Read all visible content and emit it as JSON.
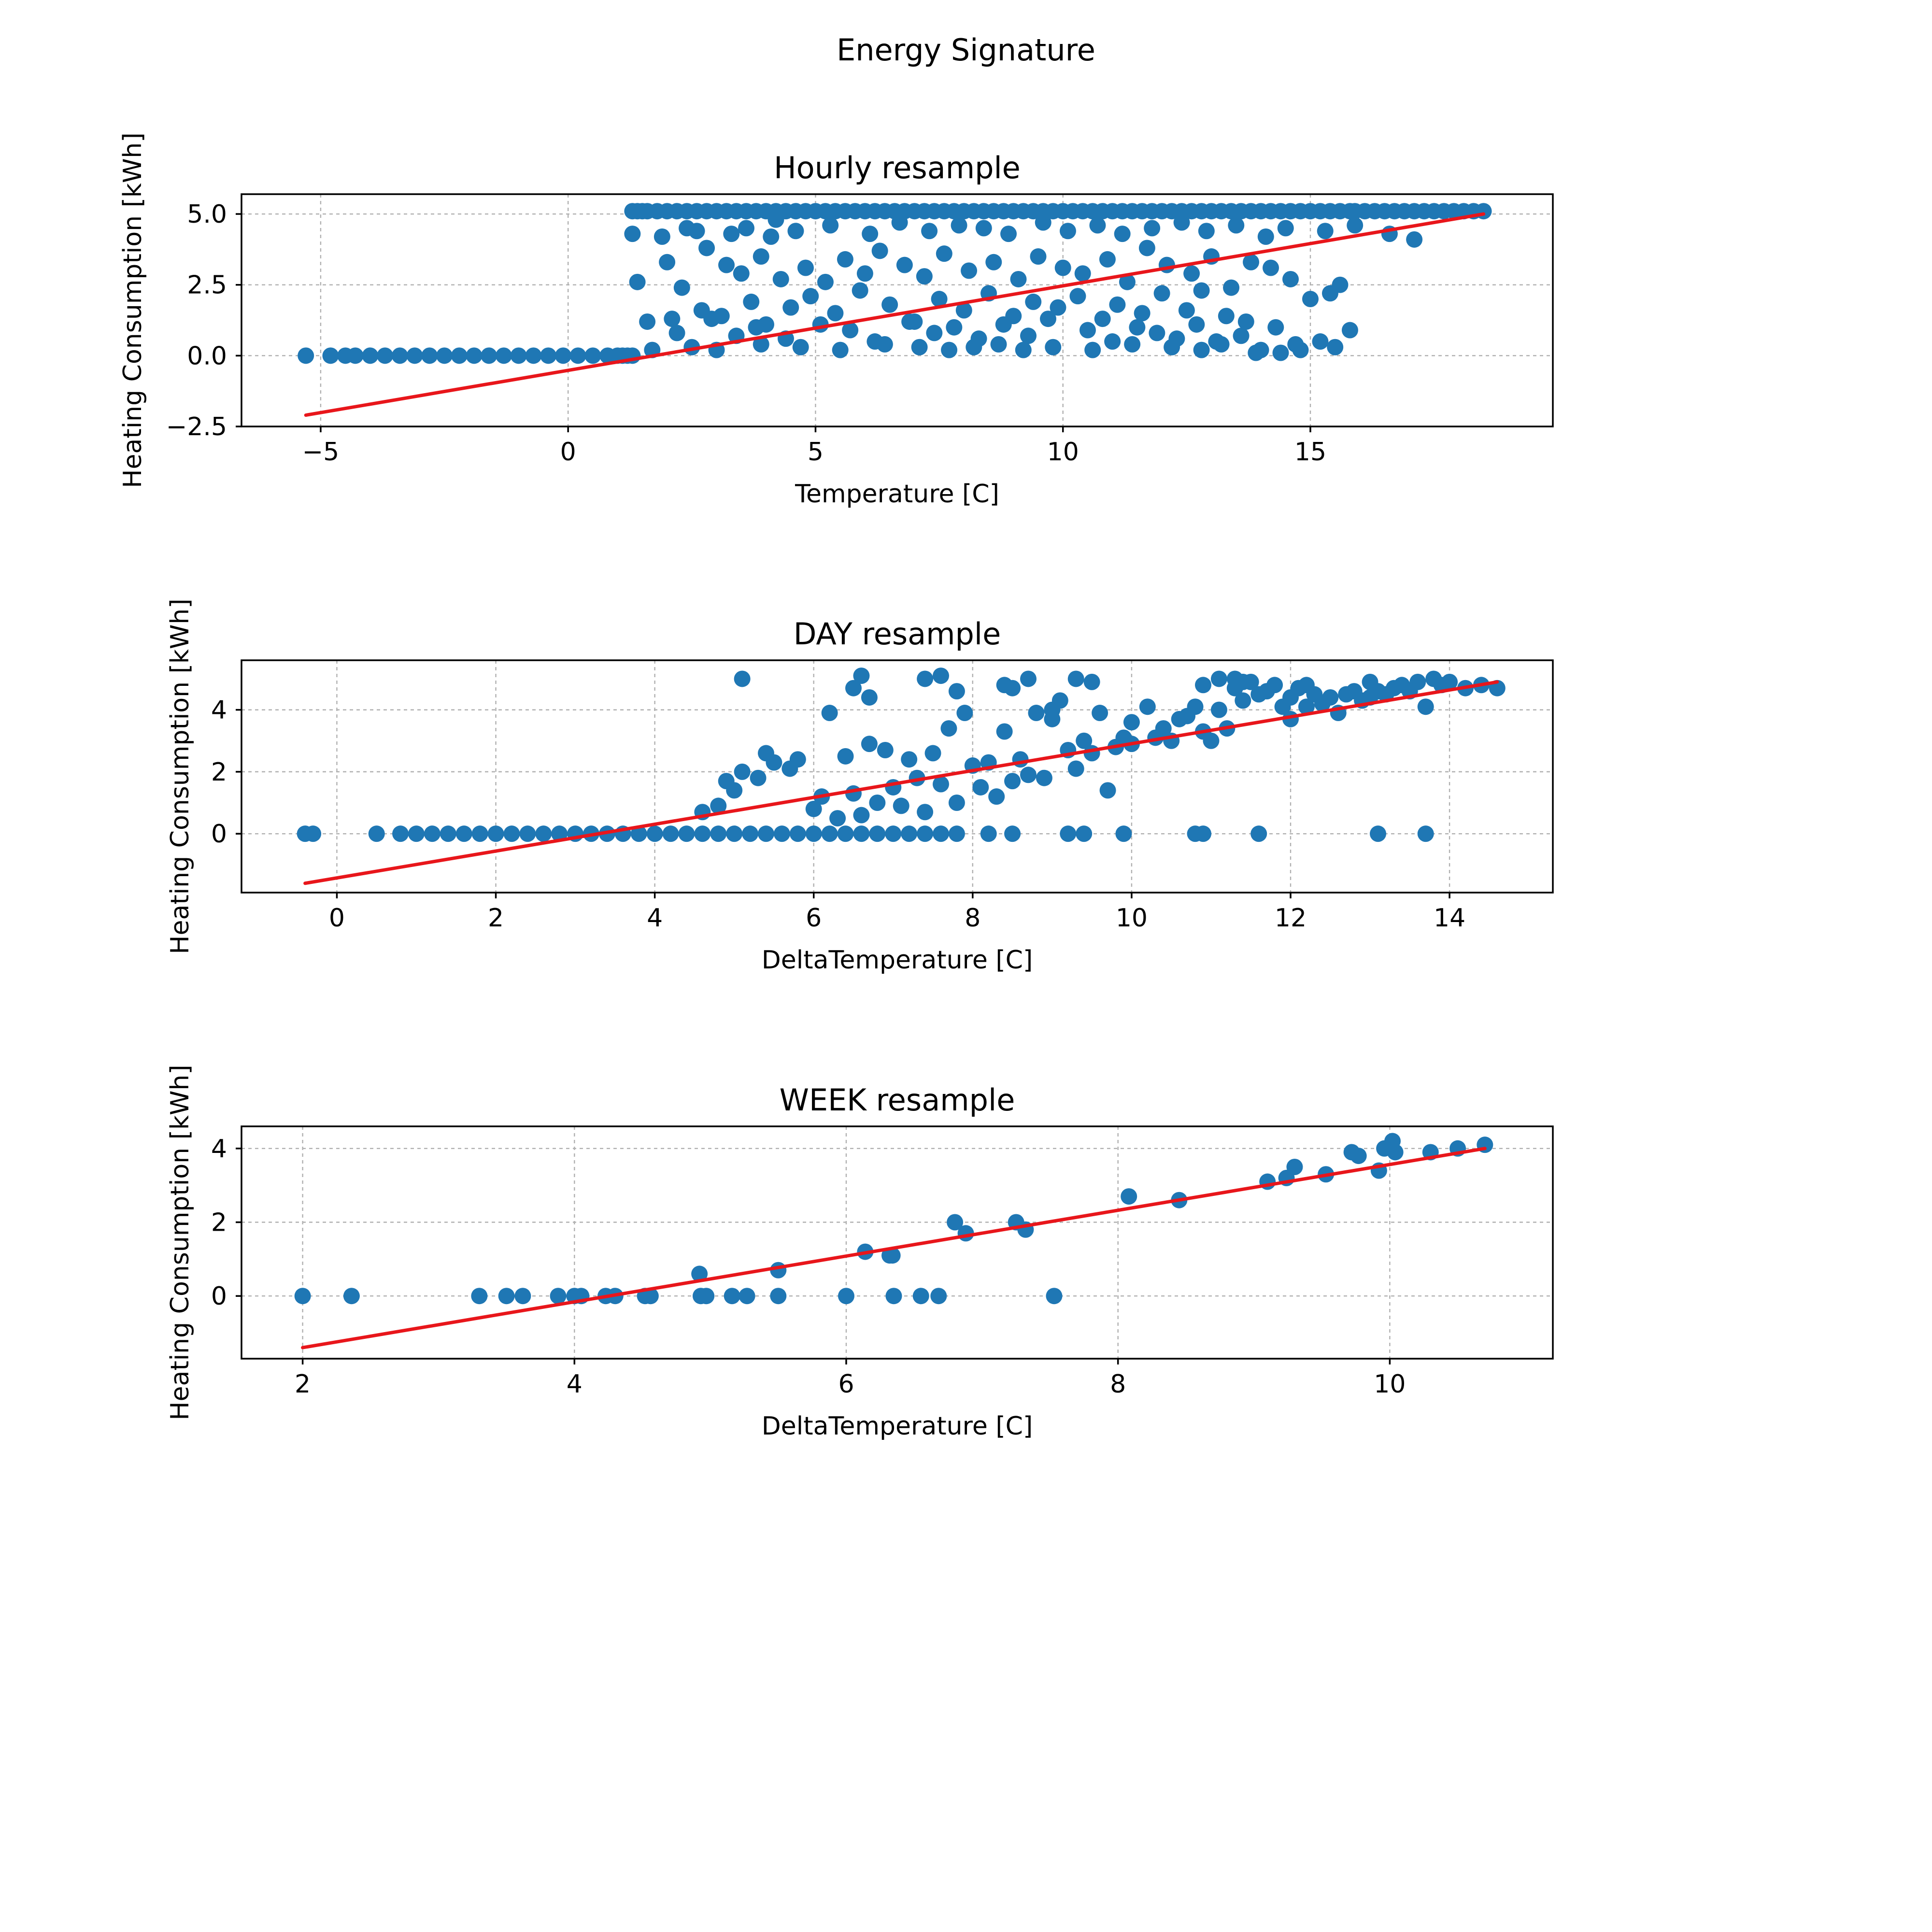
{
  "figure": {
    "suptitle": "Energy Signature",
    "colors": {
      "points": "#1f77b4",
      "fit": "#e8161b",
      "grid": "#b0b0b0"
    }
  },
  "chart_data": [
    {
      "type": "scatter",
      "title": "Hourly resample",
      "xlabel": "Temperature [C]",
      "ylabel": "Heating Consumption [kWh]",
      "xlim": [
        -6.6,
        19.9
      ],
      "ylim": [
        -2.5,
        5.7
      ],
      "xticks": [
        -5,
        0,
        5,
        10,
        15
      ],
      "xticklabels": [
        "−5",
        "0",
        "5",
        "10",
        "15"
      ],
      "yticks": [
        -2.5,
        0.0,
        2.5,
        5.0
      ],
      "yticklabels": [
        "−2.5",
        "0.0",
        "2.5",
        "5.0"
      ],
      "grid": true,
      "fit_line": {
        "x": [
          -5.3,
          18.5
        ],
        "y": [
          -2.1,
          5.0
        ]
      },
      "points_x": [
        -5.3,
        -4.8,
        -4.5,
        -4.3,
        -4.0,
        -3.7,
        -3.4,
        -3.1,
        -2.8,
        -2.5,
        -2.2,
        -1.9,
        -1.6,
        -1.3,
        -1.0,
        -0.7,
        -0.4,
        -0.1,
        0.2,
        0.5,
        0.8,
        1.0,
        1.1,
        1.2,
        1.3,
        1.3,
        1.4,
        1.5,
        1.6,
        1.8,
        2.0,
        2.2,
        2.4,
        2.6,
        2.8,
        3.0,
        3.2,
        3.4,
        3.6,
        3.8,
        4.0,
        4.2,
        4.4,
        4.6,
        4.8,
        5.0,
        5.2,
        5.4,
        5.6,
        5.8,
        6.0,
        6.2,
        6.4,
        6.6,
        6.8,
        7.0,
        7.2,
        7.4,
        7.6,
        7.8,
        8.0,
        8.2,
        8.4,
        8.6,
        8.8,
        9.0,
        9.2,
        9.4,
        9.6,
        9.8,
        10.0,
        10.2,
        10.4,
        10.6,
        10.8,
        11.0,
        11.2,
        11.4,
        11.6,
        11.8,
        12.0,
        12.2,
        12.4,
        12.6,
        12.8,
        13.0,
        13.2,
        13.4,
        13.6,
        13.8,
        14.0,
        14.2,
        14.4,
        14.6,
        14.8,
        15.0,
        15.2,
        15.4,
        15.6,
        15.8,
        15.9,
        16.1,
        16.3,
        16.5,
        16.7,
        16.9,
        17.1,
        17.3,
        17.5,
        17.7,
        17.9,
        18.1,
        18.3,
        18.5,
        1.3,
        1.9,
        2.4,
        2.6,
        3.3,
        3.6,
        4.1,
        4.2,
        4.6,
        5.3,
        6.1,
        6.7,
        7.3,
        7.9,
        8.4,
        8.9,
        9.6,
        10.1,
        10.7,
        11.2,
        11.8,
        12.4,
        12.9,
        13.5,
        14.1,
        14.5,
        15.3,
        15.9,
        16.6,
        17.1,
        1.4,
        2.0,
        2.3,
        2.8,
        3.2,
        3.5,
        3.9,
        4.3,
        4.8,
        5.2,
        5.6,
        6.0,
        6.3,
        6.8,
        7.2,
        7.6,
        8.1,
        8.6,
        9.1,
        9.5,
        10.0,
        10.4,
        10.9,
        11.3,
        11.7,
        12.1,
        12.6,
        13.0,
        13.4,
        13.8,
        14.2,
        14.6,
        15.0,
        15.4,
        15.6,
        2.1,
        2.7,
        3.1,
        3.7,
        4.0,
        4.5,
        4.9,
        5.4,
        5.9,
        6.5,
        7.0,
        7.5,
        8.0,
        8.5,
        9.0,
        9.4,
        9.9,
        10.3,
        10.8,
        11.1,
        11.6,
        12.0,
        12.5,
        12.8,
        13.3,
        13.7,
        14.3,
        14.7,
        15.2,
        15.8,
        1.6,
        2.2,
        2.9,
        3.4,
        3.8,
        4.4,
        5.1,
        5.7,
        6.2,
        6.9,
        7.4,
        7.8,
        8.3,
        8.8,
        9.3,
        9.7,
        10.5,
        11.0,
        11.5,
        11.9,
        12.3,
        12.7,
        13.1,
        13.6,
        14.0,
        14.4,
        15.5,
        1.7,
        2.5,
        3.0,
        3.9,
        4.7,
        5.5,
        6.4,
        7.1,
        7.7,
        8.2,
        8.7,
        9.2,
        9.8,
        10.6,
        11.4,
        12.2,
        12.8,
        13.2,
        13.9,
        14.8,
        15.1,
        16.2,
        16.8
      ],
      "points_y": [
        0.0,
        0.0,
        0.0,
        0.0,
        0.0,
        0.0,
        0.0,
        0.0,
        0.0,
        0.0,
        0.0,
        0.0,
        0.0,
        0.0,
        0.0,
        0.0,
        0.0,
        0.0,
        0.0,
        0.0,
        0.0,
        0.0,
        0.0,
        0.0,
        0.0,
        5.1,
        5.1,
        5.1,
        5.1,
        5.1,
        5.1,
        5.1,
        5.1,
        5.1,
        5.1,
        5.1,
        5.1,
        5.1,
        5.1,
        5.1,
        5.1,
        5.1,
        5.1,
        5.1,
        5.1,
        5.1,
        5.1,
        5.1,
        5.1,
        5.1,
        5.1,
        5.1,
        5.1,
        5.1,
        5.1,
        5.1,
        5.1,
        5.1,
        5.1,
        5.1,
        5.1,
        5.1,
        5.1,
        5.1,
        5.1,
        5.1,
        5.1,
        5.1,
        5.1,
        5.1,
        5.1,
        5.1,
        5.1,
        5.1,
        5.1,
        5.1,
        5.1,
        5.1,
        5.1,
        5.1,
        5.1,
        5.1,
        5.1,
        5.1,
        5.1,
        5.1,
        5.1,
        5.1,
        5.1,
        5.1,
        5.1,
        5.1,
        5.1,
        5.1,
        5.1,
        5.1,
        5.1,
        5.1,
        5.1,
        5.1,
        5.1,
        5.1,
        5.1,
        5.1,
        5.1,
        5.1,
        5.1,
        5.1,
        5.1,
        5.1,
        5.1,
        5.1,
        5.1,
        5.1,
        4.3,
        4.2,
        4.5,
        4.4,
        4.3,
        4.5,
        4.2,
        4.8,
        4.4,
        4.6,
        4.3,
        4.7,
        4.4,
        4.6,
        4.5,
        4.3,
        4.7,
        4.4,
        4.6,
        4.3,
        4.5,
        4.7,
        4.4,
        4.6,
        4.2,
        4.5,
        4.4,
        4.6,
        4.3,
        4.1,
        2.6,
        3.3,
        2.4,
        3.8,
        3.2,
        2.9,
        3.5,
        2.7,
        3.1,
        2.6,
        3.4,
        2.9,
        3.7,
        3.2,
        2.8,
        3.6,
        3.0,
        3.3,
        2.7,
        3.5,
        3.1,
        2.9,
        3.4,
        2.6,
        3.8,
        3.2,
        2.9,
        3.5,
        2.4,
        3.3,
        3.1,
        2.7,
        2.0,
        2.2,
        2.5,
        1.3,
        1.6,
        1.4,
        1.9,
        1.1,
        1.7,
        2.1,
        1.5,
        2.3,
        1.8,
        1.2,
        2.0,
        1.6,
        2.2,
        1.4,
        1.9,
        1.7,
        2.1,
        1.3,
        1.8,
        1.5,
        2.2,
        1.6,
        2.3,
        1.4,
        1.2,
        1.0,
        0.4,
        0.5,
        0.9,
        1.2,
        0.8,
        1.3,
        0.7,
        1.0,
        0.6,
        1.1,
        0.9,
        0.5,
        1.2,
        0.8,
        1.0,
        0.6,
        1.1,
        0.7,
        1.3,
        0.9,
        0.5,
        1.0,
        0.8,
        0.6,
        1.1,
        0.5,
        0.7,
        0.2,
        0.1,
        0.3,
        0.2,
        0.3,
        0.2,
        0.4,
        0.3,
        0.2,
        0.4,
        0.3,
        0.2,
        0.3,
        0.4,
        0.2,
        0.3,
        0.2,
        0.4,
        0.3,
        0.2,
        0.4,
        0.1,
        0.2
      ]
    },
    {
      "type": "scatter",
      "title": "DAY resample",
      "xlabel": "DeltaTemperature [C]",
      "ylabel": "Heating Consumption [kWh]",
      "xlim": [
        -1.2,
        15.3
      ],
      "ylim": [
        -1.9,
        5.6
      ],
      "xticks": [
        0,
        2,
        4,
        6,
        8,
        10,
        12,
        14
      ],
      "xticklabels": [
        "0",
        "2",
        "4",
        "6",
        "8",
        "10",
        "12",
        "14"
      ],
      "yticks": [
        0,
        2,
        4
      ],
      "yticklabels": [
        "0",
        "2",
        "4"
      ],
      "grid": true,
      "fit_line": {
        "x": [
          -0.4,
          14.6
        ],
        "y": [
          -1.6,
          4.9
        ]
      },
      "points_x": [
        -0.4,
        -0.3,
        0.5,
        0.8,
        1.0,
        1.2,
        1.4,
        1.6,
        1.8,
        2.0,
        2.2,
        2.4,
        2.6,
        2.8,
        3.0,
        3.2,
        3.4,
        3.6,
        3.8,
        4.0,
        4.2,
        4.4,
        4.6,
        4.8,
        5.0,
        5.2,
        5.4,
        5.6,
        5.8,
        6.0,
        6.2,
        6.4,
        6.6,
        6.8,
        7.0,
        7.2,
        7.4,
        7.6,
        7.8,
        8.2,
        8.5,
        9.2,
        9.4,
        9.9,
        10.8,
        10.9,
        11.6,
        13.1,
        4.6,
        4.8,
        4.9,
        5.0,
        5.1,
        5.3,
        5.4,
        5.5,
        5.7,
        5.8,
        6.0,
        6.1,
        6.3,
        6.4,
        6.5,
        6.6,
        6.7,
        6.8,
        6.9,
        7.0,
        7.1,
        7.2,
        7.3,
        7.4,
        7.5,
        7.6,
        7.7,
        7.8,
        7.9,
        8.0,
        8.1,
        8.2,
        8.3,
        8.4,
        8.5,
        8.6,
        8.7,
        8.8,
        8.9,
        9.0,
        9.1,
        9.2,
        9.3,
        9.4,
        9.5,
        9.6,
        9.7,
        9.8,
        9.9,
        10.0,
        10.2,
        10.3,
        10.4,
        10.5,
        10.6,
        10.7,
        10.8,
        10.9,
        11.0,
        11.1,
        11.2,
        11.3,
        11.4,
        11.5,
        11.6,
        11.7,
        11.8,
        11.9,
        12.0,
        12.1,
        12.2,
        12.3,
        12.4,
        12.5,
        12.6,
        12.7,
        12.8,
        12.9,
        13.0,
        13.1,
        13.2,
        13.3,
        13.4,
        13.5,
        13.6,
        13.7,
        13.8,
        13.9,
        14.0,
        14.2,
        14.4,
        14.6,
        6.5,
        6.6,
        7.4,
        7.6,
        7.8,
        8.4,
        8.7,
        9.3,
        9.5,
        10.9,
        11.1,
        11.3,
        12.0,
        13.0,
        6.7,
        6.2,
        5.1,
        8.5,
        9.0,
        10.0,
        11.4,
        12.2,
        13.7
      ],
      "points_y": [
        0.0,
        0.0,
        0.0,
        0.0,
        0.0,
        0.0,
        0.0,
        0.0,
        0.0,
        0.0,
        0.0,
        0.0,
        0.0,
        0.0,
        0.0,
        0.0,
        0.0,
        0.0,
        0.0,
        0.0,
        0.0,
        0.0,
        0.0,
        0.0,
        0.0,
        0.0,
        0.0,
        0.0,
        0.0,
        0.0,
        0.0,
        0.0,
        0.0,
        0.0,
        0.0,
        0.0,
        0.0,
        0.0,
        0.0,
        0.0,
        0.0,
        0.0,
        0.0,
        0.0,
        0.0,
        0.0,
        0.0,
        0.0,
        0.7,
        0.9,
        1.7,
        1.4,
        2.0,
        1.8,
        2.6,
        2.3,
        2.1,
        2.4,
        0.8,
        1.2,
        0.5,
        2.5,
        1.3,
        0.6,
        2.9,
        1.0,
        2.7,
        1.5,
        0.9,
        2.4,
        1.8,
        0.7,
        2.6,
        1.6,
        3.4,
        1.0,
        3.9,
        2.2,
        1.5,
        2.3,
        1.2,
        3.3,
        1.7,
        2.4,
        1.9,
        3.9,
        1.8,
        3.7,
        4.3,
        2.7,
        2.1,
        3.0,
        2.6,
        3.9,
        1.4,
        2.8,
        3.1,
        2.9,
        4.1,
        3.1,
        3.4,
        3.0,
        3.7,
        3.8,
        4.1,
        3.3,
        3.0,
        4.0,
        3.4,
        4.7,
        4.3,
        4.9,
        4.5,
        4.6,
        4.8,
        4.1,
        4.4,
        4.7,
        4.8,
        4.5,
        4.2,
        4.4,
        3.9,
        4.5,
        4.6,
        4.3,
        4.9,
        4.6,
        4.5,
        4.7,
        4.8,
        4.6,
        4.9,
        4.1,
        5.0,
        4.8,
        4.9,
        4.7,
        4.8,
        4.7,
        4.7,
        5.1,
        5.0,
        5.1,
        4.6,
        4.8,
        5.0,
        5.0,
        4.9,
        4.8,
        5.0,
        5.0,
        3.7,
        4.4,
        4.4,
        3.9,
        5.0,
        4.7,
        4.0,
        3.6,
        4.9,
        4.1,
        0.0
      ]
    },
    {
      "type": "scatter",
      "title": "WEEK resample",
      "xlabel": "DeltaTemperature [C]",
      "ylabel": "Heating Consumption [kWh]",
      "xlim": [
        1.55,
        11.2
      ],
      "ylim": [
        -1.7,
        4.6
      ],
      "xticks": [
        2,
        4,
        6,
        8,
        10
      ],
      "xticklabels": [
        "2",
        "4",
        "6",
        "8",
        "10"
      ],
      "yticks": [
        0,
        2,
        4
      ],
      "yticklabels": [
        "0",
        "2",
        "4"
      ],
      "grid": true,
      "fit_line": {
        "x": [
          2.0,
          10.7
        ],
        "y": [
          -1.4,
          4.0
        ]
      },
      "points_x": [
        2.0,
        2.36,
        3.3,
        3.5,
        3.62,
        3.88,
        4.0,
        4.05,
        4.23,
        4.3,
        4.52,
        4.56,
        4.93,
        4.97,
        5.16,
        5.27,
        5.5,
        6.0,
        6.35,
        6.55,
        6.68,
        7.53,
        4.92,
        5.5,
        6.14,
        6.32,
        6.34,
        6.8,
        6.88,
        7.25,
        7.32,
        8.08,
        8.45,
        9.1,
        9.24,
        9.3,
        9.53,
        9.72,
        9.77,
        9.92,
        9.96,
        10.02,
        10.04,
        10.3,
        10.5,
        10.7
      ],
      "points_y": [
        0.0,
        0.0,
        0.0,
        0.0,
        0.0,
        0.0,
        0.0,
        0.0,
        0.0,
        0.0,
        0.0,
        0.0,
        0.0,
        0.0,
        0.0,
        0.0,
        0.0,
        0.0,
        0.0,
        0.0,
        0.0,
        0.0,
        0.6,
        0.7,
        1.2,
        1.1,
        1.1,
        2.0,
        1.7,
        2.0,
        1.8,
        2.7,
        2.6,
        3.1,
        3.2,
        3.5,
        3.3,
        3.9,
        3.8,
        3.4,
        4.0,
        4.2,
        3.9,
        3.9,
        4.0,
        4.1
      ]
    }
  ]
}
